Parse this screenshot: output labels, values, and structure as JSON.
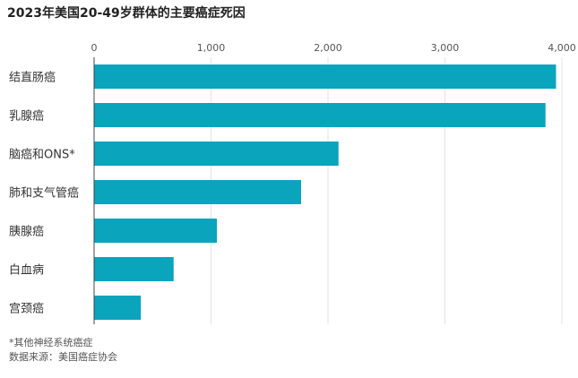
{
  "chart_data": {
    "type": "bar",
    "orientation": "horizontal",
    "title": "2023年美国20-49岁群体的主要癌症死因",
    "categories": [
      "结直肠癌",
      "乳腺癌",
      "脑癌和ONS*",
      "肺和支气管癌",
      "胰腺癌",
      "白血病",
      "宫颈癌"
    ],
    "values": [
      3950,
      3860,
      2090,
      1770,
      1050,
      680,
      400
    ],
    "xlim": [
      0,
      4000
    ],
    "xticks": [
      0,
      1000,
      2000,
      3000,
      4000
    ],
    "xtick_labels": [
      "0",
      "1,000",
      "2,000",
      "3,000",
      "4,000"
    ],
    "grid": true,
    "bar_color": "#0aa4bc",
    "xlabel": "",
    "ylabel": ""
  },
  "footnote": {
    "note": "*其他神经系统癌症",
    "source": "数据来源：美国癌症协会"
  }
}
